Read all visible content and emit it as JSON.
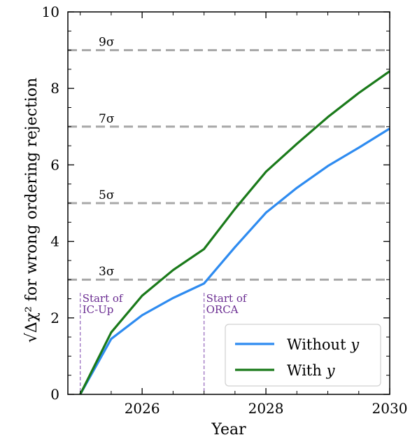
{
  "chart_data": {
    "type": "line",
    "xlabel": "Year",
    "ylabel": "√Δχ² for wrong ordering rejection",
    "xlim": [
      2024.8,
      2030
    ],
    "ylim": [
      0,
      10
    ],
    "x_ticks": [
      2026,
      2028,
      2030
    ],
    "y_ticks": [
      0,
      2,
      4,
      6,
      8,
      10
    ],
    "grid": false,
    "legend_position": "bottom-right",
    "series": [
      {
        "name": "Without y",
        "color": "#2e8bf0",
        "x": [
          2025.0,
          2025.5,
          2026.0,
          2026.5,
          2027.0,
          2027.5,
          2028.0,
          2028.5,
          2029.0,
          2029.5,
          2030.0
        ],
        "y": [
          0.0,
          1.45,
          2.07,
          2.52,
          2.9,
          3.85,
          4.75,
          5.4,
          5.97,
          6.45,
          6.95
        ]
      },
      {
        "name": "With y",
        "color": "#1a7a1a",
        "x": [
          2025.0,
          2025.5,
          2026.0,
          2026.5,
          2027.0,
          2027.5,
          2028.0,
          2028.5,
          2029.0,
          2029.5,
          2030.0
        ],
        "y": [
          0.0,
          1.62,
          2.58,
          3.25,
          3.8,
          4.85,
          5.82,
          6.55,
          7.25,
          7.88,
          8.45
        ]
      }
    ],
    "reference_lines": [
      {
        "y": 3,
        "label": "3σ"
      },
      {
        "y": 5,
        "label": "5σ"
      },
      {
        "y": 7,
        "label": "7σ"
      },
      {
        "y": 9,
        "label": "9σ"
      }
    ],
    "annotations": [
      {
        "x": 2025.0,
        "lines": [
          "Start of",
          "IC-Up"
        ],
        "color": "#9a6fc0"
      },
      {
        "x": 2027.0,
        "lines": [
          "Start of",
          "ORCA"
        ],
        "color": "#9a6fc0"
      }
    ],
    "legend_labels": [
      {
        "text": "Without ",
        "var": "y"
      },
      {
        "text": "With ",
        "var": "y"
      }
    ]
  }
}
